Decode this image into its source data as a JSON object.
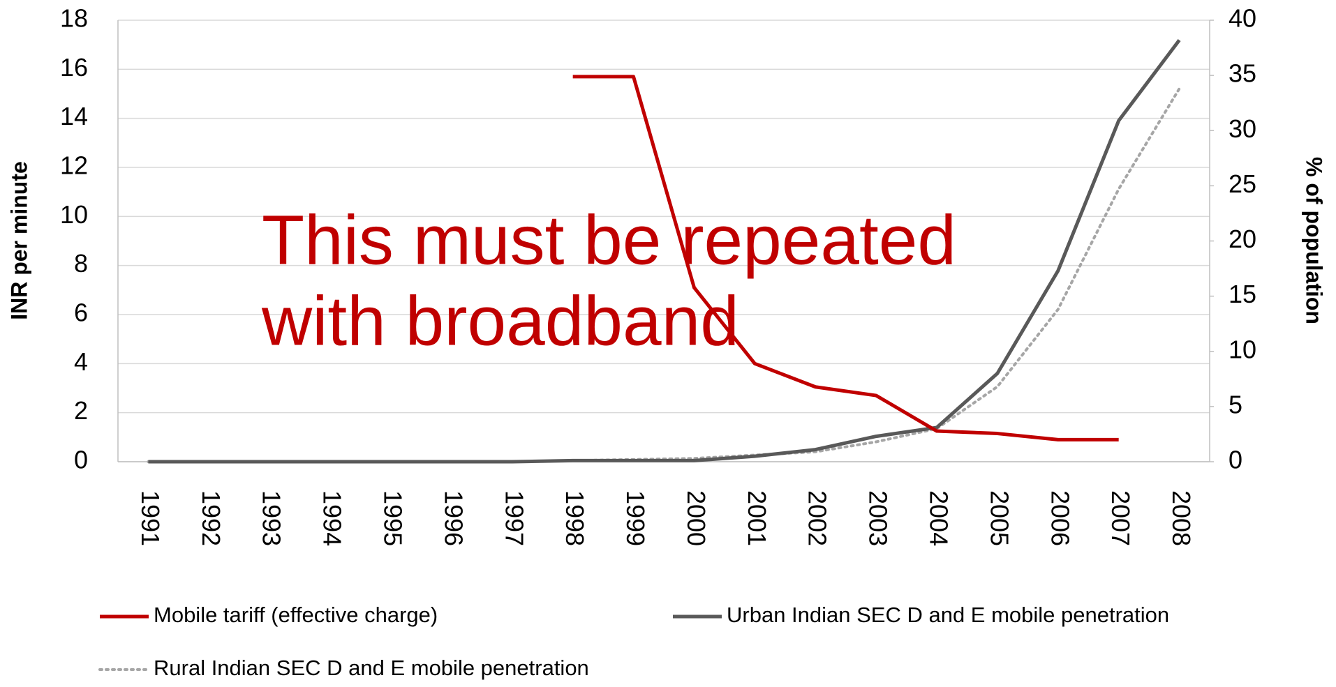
{
  "chart_data": {
    "type": "line",
    "y_label": "INR per minute",
    "y2_label": "% of  population",
    "annotation_lines": [
      "This must be repeated",
      "with broadband"
    ],
    "categories": [
      "1991",
      "1992",
      "1993",
      "1994",
      "1995",
      "1996",
      "1997",
      "1998",
      "1999",
      "2000",
      "2001",
      "2002",
      "2003",
      "2004",
      "2005",
      "2006",
      "2007",
      "2008"
    ],
    "ylim": [
      0,
      18
    ],
    "yticks": [
      0,
      2,
      4,
      6,
      8,
      10,
      12,
      14,
      16,
      18
    ],
    "y2lim": [
      0,
      40
    ],
    "y2ticks": [
      0,
      5,
      10,
      15,
      20,
      25,
      30,
      35,
      40
    ],
    "grid": true,
    "series": [
      {
        "name": "Mobile tariff (effective charge)",
        "color": "#c00000",
        "dash": "solid",
        "values": [
          null,
          null,
          null,
          null,
          null,
          null,
          null,
          15.7,
          15.7,
          7.1,
          4.0,
          3.05,
          2.7,
          1.25,
          1.15,
          0.9,
          0.9,
          null
        ]
      },
      {
        "name": "Urban Indian SEC D and E mobile penetration",
        "color": "#595959",
        "dash": "solid",
        "axis": "y2",
        "values": [
          0,
          0,
          0,
          0,
          0,
          0,
          0,
          0.1,
          0.1,
          0.1,
          0.5,
          1.1,
          2.3,
          3.1,
          8.0,
          17.3,
          30.9,
          38.2
        ]
      },
      {
        "name": "Rural Indian SEC D and E mobile penetration",
        "color": "#a6a6a6",
        "dash": "dotted",
        "axis": "y2",
        "values": [
          0,
          0,
          0,
          0,
          0,
          0,
          0,
          0.1,
          0.2,
          0.3,
          0.6,
          0.9,
          1.8,
          3.0,
          6.8,
          13.8,
          24.7,
          33.8
        ]
      }
    ]
  }
}
